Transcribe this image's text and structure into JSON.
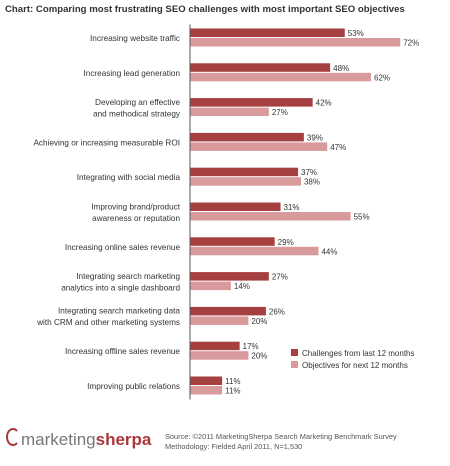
{
  "chart_data": {
    "type": "bar",
    "orientation": "horizontal",
    "title": "Chart: Comparing most frustrating SEO challenges with most important SEO objectives",
    "categories": [
      [
        "Increasing website traffic"
      ],
      [
        "Increasing lead generation"
      ],
      [
        "Developing an effective",
        "and methodical strategy"
      ],
      [
        "Achieving or increasing measurable ROI"
      ],
      [
        "Integrating with social media"
      ],
      [
        "Improving brand/product",
        "awareness or reputation"
      ],
      [
        "Increasing online sales revenue"
      ],
      [
        "Integrating search marketing",
        "analytics into a single dashboard"
      ],
      [
        "Integrating search marketing data",
        "with CRM and other marketing systems"
      ],
      [
        "Increasing offline sales revenue"
      ],
      [
        "Improving public relations"
      ]
    ],
    "series": [
      {
        "name": "Challenges from last 12 months",
        "color": "#a63f3f",
        "values": [
          53,
          48,
          42,
          39,
          37,
          31,
          29,
          27,
          26,
          17,
          11
        ]
      },
      {
        "name": "Objectives for next 12 months",
        "color": "#d99a9c",
        "values": [
          72,
          62,
          27,
          47,
          38,
          55,
          44,
          14,
          20,
          20,
          11
        ]
      }
    ],
    "value_suffix": "%",
    "xlim": [
      0,
      72
    ],
    "grid": false,
    "legend_position": "bottom-right"
  },
  "footer": {
    "logo_prefix": "marketing",
    "logo_brand": "sherpa",
    "source_line1": "Source: ©2011 MarketingSherpa Search Marketing Benchmark Survey",
    "source_line2": "Methodology: Fielded April 2011, N=1,530"
  }
}
